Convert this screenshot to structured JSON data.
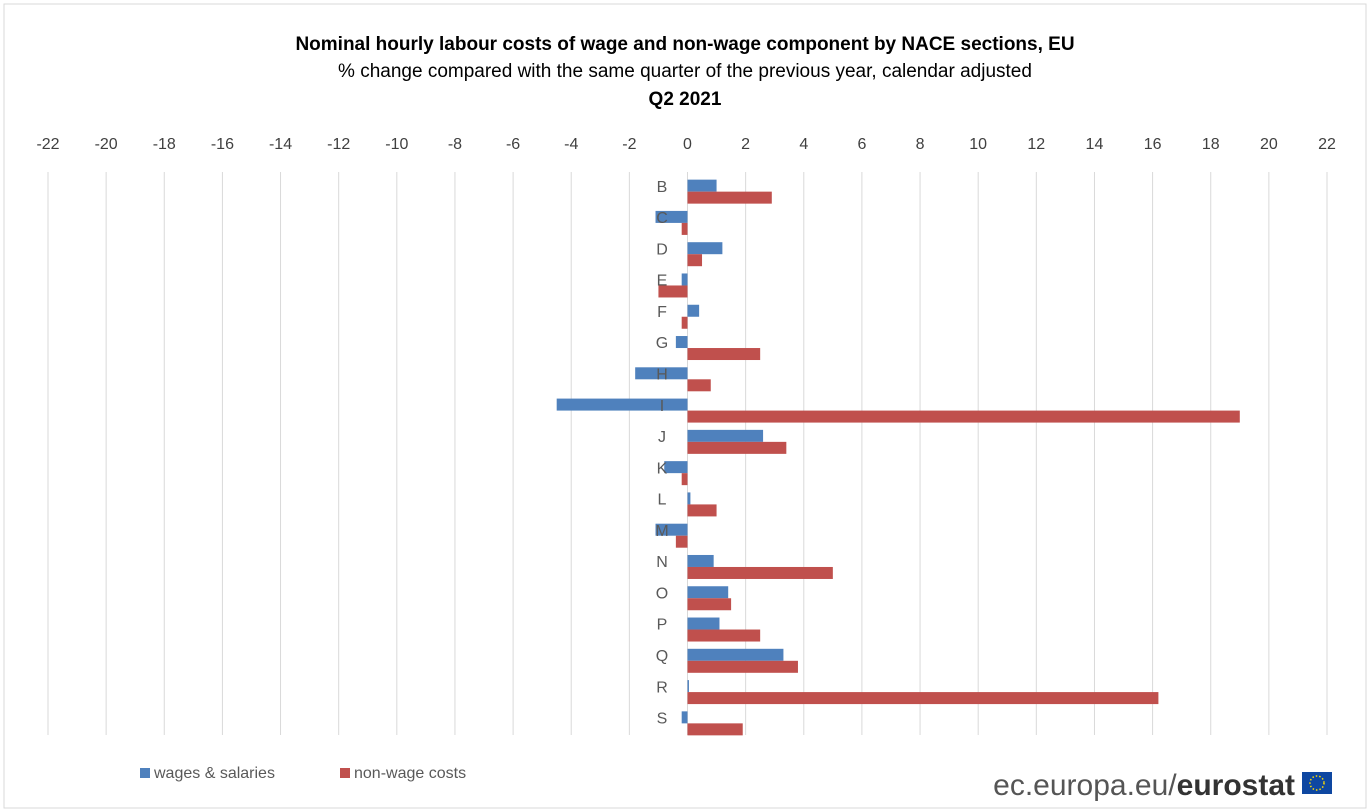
{
  "chart_data": {
    "type": "hbar",
    "title": "Nominal hourly labour costs  of wage and non-wage component by NACE  sections,  EU",
    "subtitle": "% change compared with the same quarter of the previous  year, calendar adjusted",
    "period": "Q2 2021",
    "categories": [
      "B",
      "C",
      "D",
      "E",
      "F",
      "G",
      "H",
      "I",
      "J",
      "K",
      "L",
      "M",
      "N",
      "O",
      "P",
      "Q",
      "R",
      "S"
    ],
    "series": [
      {
        "name": "wages & salaries",
        "color": "#4f81bd",
        "values": [
          1.0,
          -1.1,
          1.2,
          -0.2,
          0.4,
          -0.4,
          -1.8,
          -4.5,
          2.6,
          -0.8,
          0.1,
          -1.1,
          0.9,
          1.4,
          1.1,
          3.3,
          0.05,
          -0.2
        ]
      },
      {
        "name": "non-wage costs",
        "color": "#c0504d",
        "values": [
          2.9,
          -0.2,
          0.5,
          -1.0,
          -0.2,
          2.5,
          0.8,
          19.0,
          3.4,
          -0.2,
          1.0,
          -0.4,
          5.0,
          1.5,
          2.5,
          3.8,
          16.2,
          1.9
        ]
      }
    ],
    "xlim": [
      -22,
      22
    ],
    "xticks": [
      -22,
      -20,
      -18,
      -16,
      -14,
      -12,
      -10,
      -8,
      -6,
      -4,
      -2,
      0,
      2,
      4,
      6,
      8,
      10,
      12,
      14,
      16,
      18,
      20,
      22
    ],
    "grid": true,
    "source": [
      "ec.europa.eu/",
      "eurostat"
    ]
  }
}
